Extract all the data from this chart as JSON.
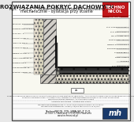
{
  "bg_color": "#e8e8e8",
  "page_bg": "#ffffff",
  "border_color": "#555555",
  "title_main": "ROZWIĄZANIA POKRYĆ DACHOWYCH",
  "title_sub1": "Rys. 1.2.1.5_7 System dwuwarstwowy mocowany",
  "title_sub2": "mechanicznie - dylatacja przy ścianie",
  "logo_red_bg": "#c0161a",
  "logo_text1": "TECHNO",
  "logo_text2": "NICOL",
  "footer_company": "TechnoNICOL POL SMA-SP. Z O.O.",
  "footer_addr": "ul. Osin 1, Okolicznie 175 05-505 Piaseczno",
  "footer_web": "www.technonicol.pl",
  "footer_logo_bg": "#1a3a6b",
  "text_color": "#1a1a1a",
  "wall_fill": "#d2cfc9",
  "slab_fill": "#c8c4bc",
  "insulation_fill": "#e8e0d0",
  "membrane_dark": "#1a1a1a",
  "membrane_mid": "#555555",
  "note_text_color": "#333333",
  "line_color": "#333333",
  "draw_bg": "#f8f8f0",
  "left_annot": [
    "WARSTWA KOMPOZYTOWA 1",
    "KOMPOZYTOWA WARSTWA 2",
    "STYK IZOL.",
    "OKLEINA SCIEN.  4",
    "TYNK LAM. EPS  5",
    "STYROPIAN EPS 100  6",
    "MEMBRANA PAR.  7",
    "TYNK CIENKOWARS.  8",
    "KOMPRIBAND  9",
    "USZCZELNIENIE",
    "ZAPRAWA USZCZ. 10"
  ],
  "right_annot": [
    "PAPA NAWIERZCHNIOWA EPS 80",
    "PAPA PODKŁADOWA EPS",
    "WELNA MINERALNA EPS",
    "Papa termozgrzewalna",
    "MEMBRANA PAROSZCZELNA",
    "BETON WYROWNAWCZY",
    "STROP ZELBET. EPS",
    "KOTWA SCIEN. EPS",
    "Folia PE EPS",
    "PAPA WIERZCHN. EPS",
    "PAPA PODKL. EPS"
  ],
  "footer_note1": "Podane klasyfikacje w zakresie reakcji na ogień (Euroclasa) dla pap asfaltowych (BROOF(t1), A2-s1,d0 dla styropianu EPS 50 na zabudowanych dachach",
  "footer_note2": "pochylych odpowiedni dobor i ulozenie izolacji, ponizszy przyklad przedstawia BIT-EL/EIT-S lub folii PE, decydujacym",
  "footer_note3": "Wszystkie materialy izolacyjne – dylatacja przy scianie",
  "footer_contact1": "Na zapytaj bezplatnego Dorad.+7 13 25-75/13-03/GRP ul dzien 1 21 01 2011 r.",
  "footer_contact2": "Na zapytaj bezplatnego REF. 07983 (170/200 MP ul dzien 8 12 23/09 r."
}
